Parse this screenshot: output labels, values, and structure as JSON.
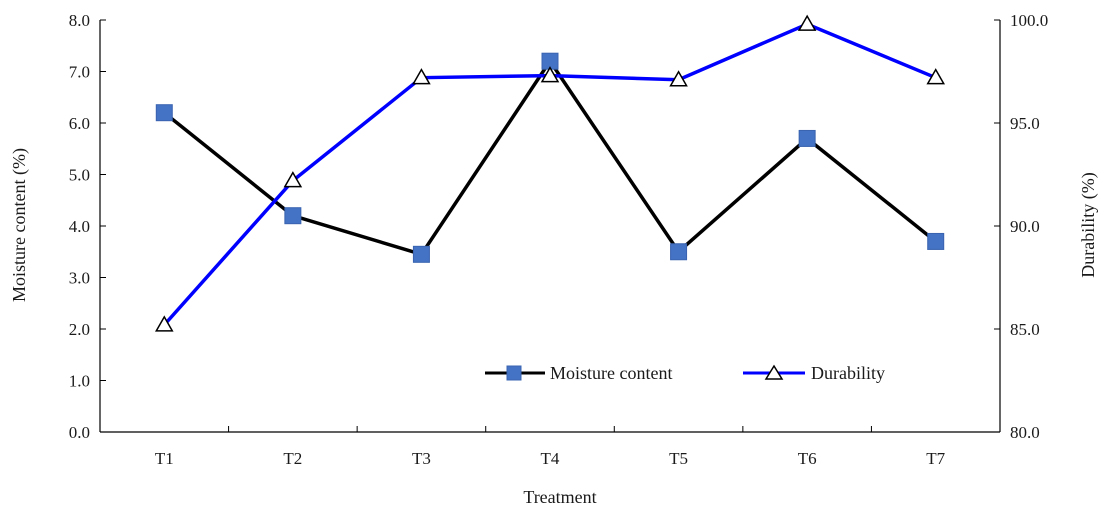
{
  "chart_data": {
    "type": "line",
    "categories": [
      "T1",
      "T2",
      "T3",
      "T4",
      "T5",
      "T6",
      "T7"
    ],
    "xlabel": "Treatment",
    "ylabel_left": "Moisture content (%)",
    "ylabel_right": "Durability (%)",
    "ylim_left": [
      0,
      8
    ],
    "ylim_right": [
      80,
      100
    ],
    "yticks_left": [
      "0.0",
      "1.0",
      "2.0",
      "3.0",
      "4.0",
      "5.0",
      "6.0",
      "7.0",
      "8.0"
    ],
    "yticks_right": [
      "80.0",
      "85.0",
      "90.0",
      "95.0",
      "100.0"
    ],
    "grid": false,
    "legend_position": "bottom-right",
    "series": [
      {
        "name": "Moisture content",
        "axis": "left",
        "values": [
          6.2,
          4.2,
          3.45,
          7.2,
          3.5,
          5.7,
          3.7
        ],
        "color": "#000000",
        "marker": "square",
        "marker_color": "#4472c4"
      },
      {
        "name": "Durability",
        "axis": "right",
        "values": [
          85.2,
          92.2,
          97.2,
          97.3,
          97.1,
          99.8,
          97.2
        ],
        "color": "#0000ff",
        "marker": "triangle",
        "marker_color": "#ffffff"
      }
    ]
  }
}
